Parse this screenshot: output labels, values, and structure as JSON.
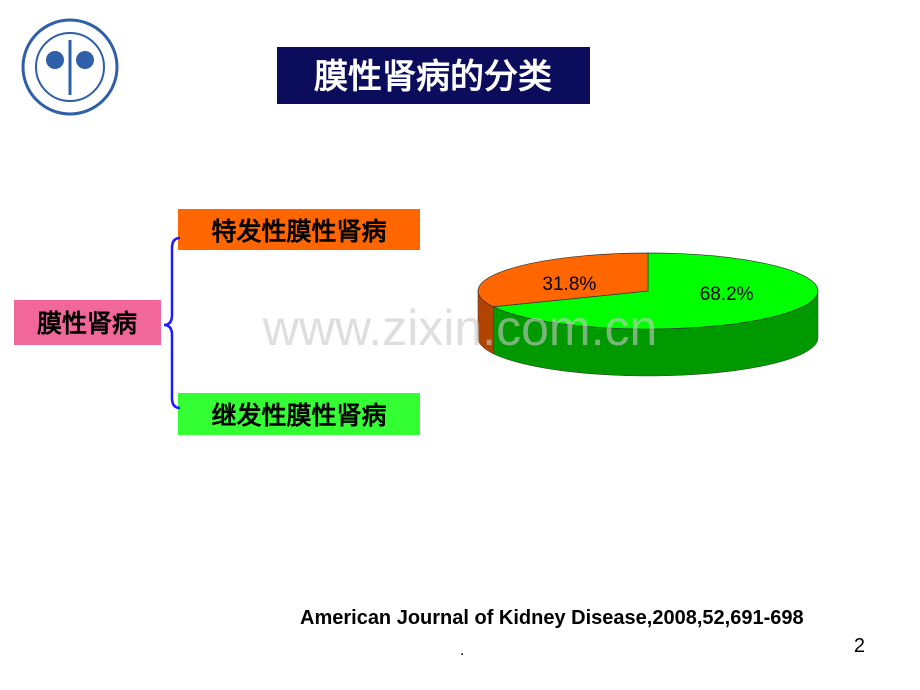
{
  "header": {
    "title": "膜性肾病的分类"
  },
  "tree": {
    "root": "膜性肾病",
    "children": [
      "特发性膜性肾病",
      "继发性膜性肾病"
    ]
  },
  "chart_data": {
    "type": "pie",
    "categories": [
      "特发性膜性肾病",
      "继发性膜性肾病"
    ],
    "values": [
      31.8,
      68.2
    ],
    "value_labels": [
      "31.8%",
      "68.2%"
    ],
    "colors": [
      "#ff6600",
      "#00ff00"
    ],
    "side_colors": [
      "#b34400",
      "#009900"
    ]
  },
  "citation": "American Journal of Kidney Disease,2008,52,691-698",
  "watermark": "www.zixin.com.cn",
  "footer": {
    "dot": ".",
    "page": "2"
  }
}
